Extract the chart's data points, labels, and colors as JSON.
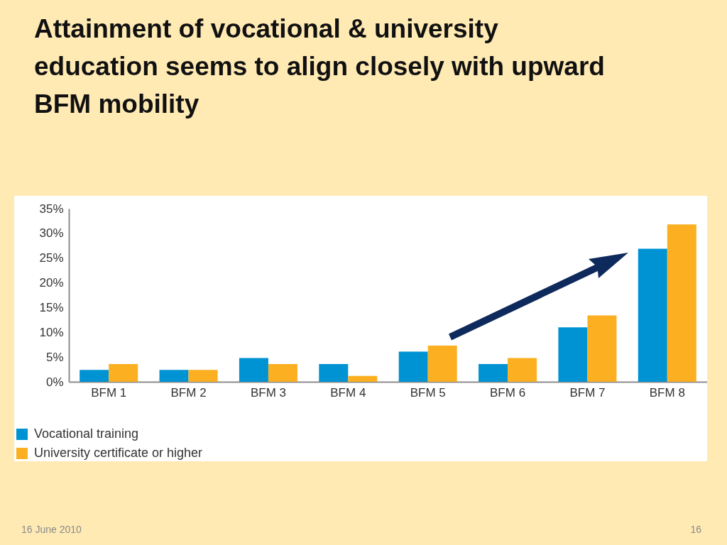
{
  "chart_data": {
    "type": "bar",
    "title": "Attainment of vocational & university education seems to align closely with upward BFM mobility",
    "categories": [
      "BFM 1",
      "BFM 2",
      "BFM 3",
      "BFM 4",
      "BFM 5",
      "BFM 6",
      "BFM 7",
      "BFM 8"
    ],
    "series": [
      {
        "name": "Vocational training",
        "color": "#0093d3",
        "values": [
          2.4,
          2.4,
          4.8,
          3.6,
          6.1,
          3.6,
          11.0,
          26.9
        ]
      },
      {
        "name": "University certificate or higher",
        "color": "#fcb021",
        "values": [
          3.6,
          2.4,
          3.6,
          1.2,
          7.3,
          4.8,
          13.4,
          31.8
        ]
      }
    ],
    "ylim": [
      0,
      35
    ],
    "yticks": [
      {
        "value": 0,
        "label": "0%"
      },
      {
        "value": 5,
        "label": "5%"
      },
      {
        "value": 10,
        "label": "10%"
      },
      {
        "value": 15,
        "label": "15%"
      },
      {
        "value": 20,
        "label": "20%"
      },
      {
        "value": 25,
        "label": "25%"
      },
      {
        "value": 30,
        "label": "30%"
      },
      {
        "value": 35,
        "label": "35%"
      }
    ],
    "grid": false,
    "legend": "bottom left",
    "annotations": [
      "16 June 2010",
      "16"
    ]
  }
}
